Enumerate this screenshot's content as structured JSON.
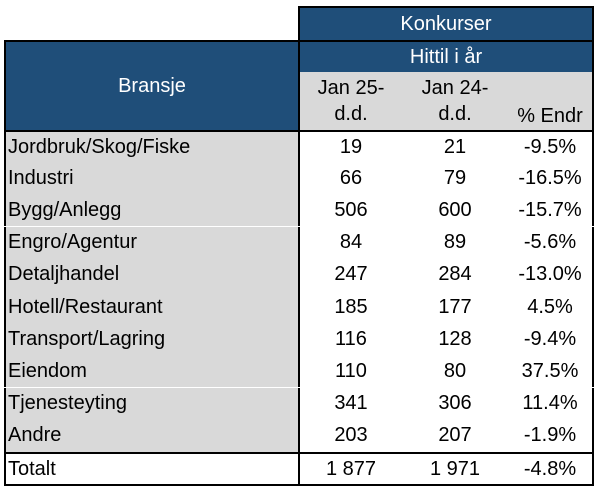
{
  "table": {
    "group_header": "Konkurser",
    "sub_header": "Hittil i år",
    "row_header": "Bransje",
    "col_headers": {
      "col1_line1": "Jan 25-",
      "col1_line2": "d.d.",
      "col2_line1": "Jan 24-",
      "col2_line2": "d.d.",
      "col3": "% Endr"
    },
    "rows": [
      {
        "label": "Jordbruk/Skog/Fiske",
        "v1": "19",
        "v2": "21",
        "pct": "-9.5%"
      },
      {
        "label": "Industri",
        "v1": "66",
        "v2": "79",
        "pct": "-16.5%"
      },
      {
        "label": "Bygg/Anlegg",
        "v1": "506",
        "v2": "600",
        "pct": "-15.7%"
      },
      {
        "label": "Engro/Agentur",
        "v1": "84",
        "v2": "89",
        "pct": "-5.6%"
      },
      {
        "label": "Detaljhandel",
        "v1": "247",
        "v2": "284",
        "pct": "-13.0%"
      },
      {
        "label": "Hotell/Restaurant",
        "v1": "185",
        "v2": "177",
        "pct": "4.5%"
      },
      {
        "label": "Transport/Lagring",
        "v1": "116",
        "v2": "128",
        "pct": "-9.4%"
      },
      {
        "label": "Eiendom",
        "v1": "110",
        "v2": "80",
        "pct": "37.5%"
      },
      {
        "label": "Tjenesteyting",
        "v1": "341",
        "v2": "306",
        "pct": "11.4%"
      },
      {
        "label": "Andre",
        "v1": "203",
        "v2": "207",
        "pct": "-1.9%"
      }
    ],
    "total": {
      "label": "Totalt",
      "v1": "1 877",
      "v2": "1 971",
      "pct": "-4.8%"
    }
  },
  "colors": {
    "header": "#1f4e79",
    "label_bg": "#d9d9d9"
  }
}
